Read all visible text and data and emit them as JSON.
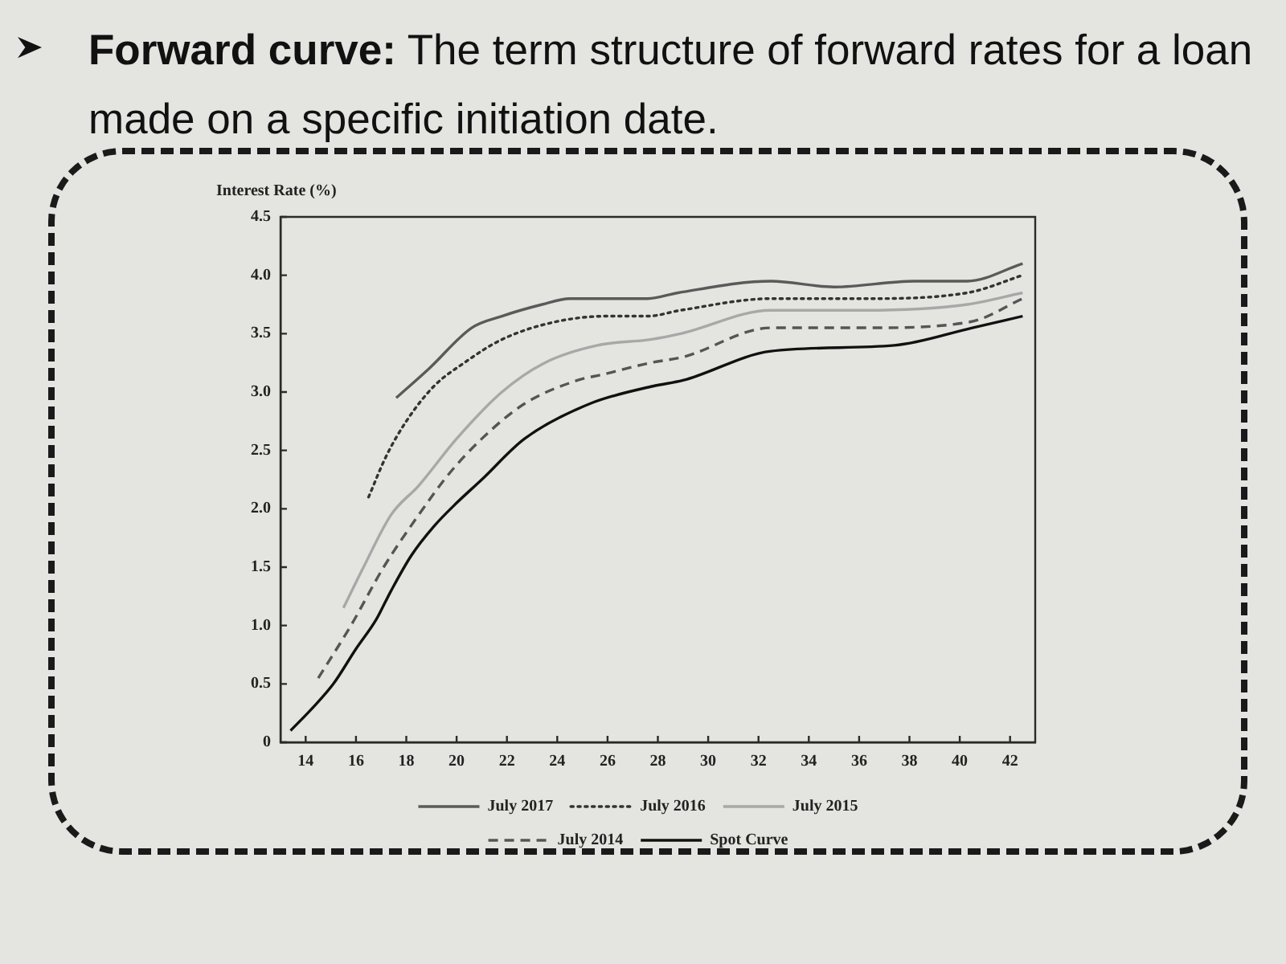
{
  "chart_data": {
    "type": "line",
    "title": "Forward curve: The term structure of forward rates for a loan made on a specific initiation date.",
    "ylabel": "Interest Rate (%)",
    "xlim": [
      13,
      43
    ],
    "xticks": [
      14,
      16,
      18,
      20,
      22,
      24,
      26,
      28,
      30,
      32,
      34,
      36,
      38,
      40,
      42
    ],
    "ylim": [
      0,
      4.5
    ],
    "yticks": [
      0,
      0.5,
      {
        "value": 1,
        "label": "1.0"
      },
      1.5,
      {
        "value": 2,
        "label": "2.0"
      },
      2.5,
      {
        "value": 3,
        "label": "3.0"
      },
      3.5,
      {
        "value": 4,
        "label": "4.0"
      },
      4.5
    ],
    "grid": false,
    "legend": "bottom",
    "marker": "none",
    "series": [
      {
        "name": "July 2017",
        "color": "#5a5a5a",
        "line_style": "solid",
        "x": [
          17.6,
          18.9,
          20.6,
          21.8,
          23.4,
          24.5,
          27.6,
          28.8,
          32.5,
          35.0,
          38.2,
          40.3,
          42.5
        ],
        "values": [
          2.95,
          3.2,
          3.55,
          3.65,
          3.75,
          3.8,
          3.8,
          3.85,
          3.95,
          3.9,
          3.95,
          3.95,
          4.1
        ]
      },
      {
        "name": "July 2016",
        "color": "#333333",
        "line_style": "dotted",
        "x": [
          16.5,
          17.2,
          18.0,
          19.1,
          20.3,
          21.8,
          23.9,
          26.0,
          27.6,
          28.9,
          32.5,
          36.1,
          40.3,
          42.5
        ],
        "values": [
          2.1,
          2.45,
          2.75,
          3.05,
          3.25,
          3.45,
          3.6,
          3.65,
          3.65,
          3.7,
          3.8,
          3.8,
          3.85,
          4.0
        ]
      },
      {
        "name": "July 2015",
        "color": "#a8a8a8",
        "line_style": "solid",
        "x": [
          15.5,
          16.3,
          17.4,
          18.5,
          20.0,
          21.8,
          23.5,
          25.6,
          27.7,
          28.9,
          32.5,
          36.2,
          40.3,
          42.5
        ],
        "values": [
          1.15,
          1.5,
          1.95,
          2.2,
          2.6,
          3.0,
          3.25,
          3.4,
          3.45,
          3.5,
          3.7,
          3.7,
          3.75,
          3.85
        ]
      },
      {
        "name": "July 2014",
        "color": "#555555",
        "line_style": "dashed",
        "x": [
          14.5,
          15.8,
          17.1,
          18.5,
          19.7,
          21.0,
          22.7,
          24.8,
          25.8,
          27.7,
          29.0,
          32.5,
          36.3,
          40.4,
          42.5
        ],
        "values": [
          0.55,
          1.0,
          1.5,
          1.95,
          2.3,
          2.6,
          2.9,
          3.1,
          3.15,
          3.25,
          3.3,
          3.55,
          3.55,
          3.6,
          3.8
        ]
      },
      {
        "name": "Spot Curve",
        "color": "#111111",
        "line_style": "solid",
        "x": [
          13.4,
          14.3,
          15.1,
          16.0,
          16.8,
          17.4,
          18.2,
          19.1,
          20.0,
          21.0,
          22.7,
          25.3,
          27.8,
          29.0,
          32.5,
          37.4,
          40.5,
          42.5
        ],
        "values": [
          0.1,
          0.3,
          0.5,
          0.8,
          1.05,
          1.3,
          1.6,
          1.85,
          2.05,
          2.25,
          2.6,
          2.9,
          3.05,
          3.1,
          3.35,
          3.4,
          3.55,
          3.65
        ]
      }
    ]
  }
}
